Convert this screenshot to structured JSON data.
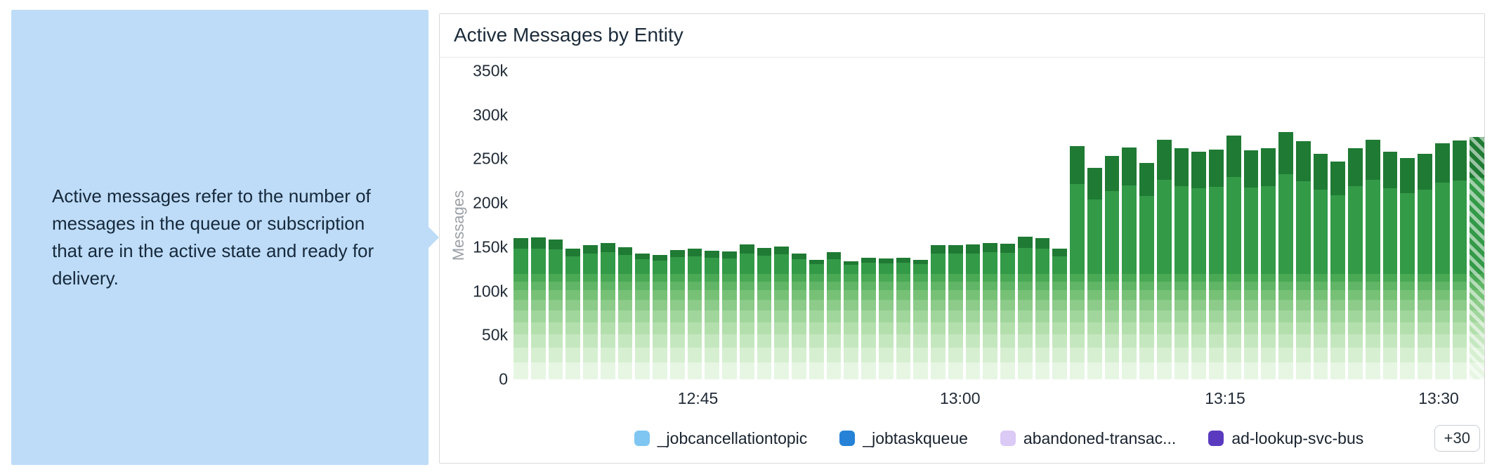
{
  "tooltip": {
    "text": "Active messages refer to the number of messages in the queue or subscription that are in the active state and ready for delivery."
  },
  "panel": {
    "title": "Active Messages by Entity"
  },
  "chart_data": {
    "type": "bar",
    "stacked": true,
    "title": "Active Messages by Entity",
    "xlabel": "",
    "ylabel": "Messages",
    "ylim_k": [
      0,
      350
    ],
    "grid": false,
    "legend_position": "bottom",
    "y_ticks": [
      {
        "label": "350k",
        "value_k": 350
      },
      {
        "label": "300k",
        "value_k": 300
      },
      {
        "label": "250k",
        "value_k": 250
      },
      {
        "label": "200k",
        "value_k": 200
      },
      {
        "label": "150k",
        "value_k": 150
      },
      {
        "label": "100k",
        "value_k": 100
      },
      {
        "label": "50k",
        "value_k": 50
      },
      {
        "label": "0",
        "value_k": 0
      }
    ],
    "x_ticks": [
      {
        "label": "12:45",
        "pos": 0.19
      },
      {
        "label": "13:00",
        "pos": 0.46
      },
      {
        "label": "13:15",
        "pos": 0.733
      },
      {
        "label": "13:30",
        "pos": 0.953
      }
    ],
    "bar_totals_k": [
      160,
      161,
      159,
      148,
      152,
      155,
      150,
      143,
      141,
      147,
      148,
      146,
      145,
      153,
      149,
      151,
      143,
      136,
      144,
      134,
      138,
      137,
      138,
      136,
      152,
      152,
      153,
      155,
      154,
      162,
      160,
      148,
      265,
      240,
      254,
      263,
      246,
      272,
      262,
      258,
      261,
      277,
      260,
      262,
      281,
      270,
      256,
      247,
      262,
      272,
      258,
      251,
      256,
      268,
      271,
      275
    ],
    "bar_base_segments": [
      {
        "color": "#e6f6e3",
        "value_k": 19
      },
      {
        "color": "#d6efd1",
        "value_k": 17
      },
      {
        "color": "#c5e7bf",
        "value_k": 15
      },
      {
        "color": "#b3dfad",
        "value_k": 14
      },
      {
        "color": "#a0d69b",
        "value_k": 13
      },
      {
        "color": "#8ccb89",
        "value_k": 12
      },
      {
        "color": "#77c177",
        "value_k": 11
      },
      {
        "color": "#61b566",
        "value_k": 10
      },
      {
        "color": "#4aa955",
        "value_k": 9
      }
    ],
    "bar_top_segments": [
      {
        "color": "#339a48",
        "fraction": 0.7
      },
      {
        "color": "#1f7a33",
        "fraction": 0.3
      }
    ],
    "last_bar_in_progress": true
  },
  "legend": {
    "items": [
      {
        "label": "_jobcancellationtopic",
        "color": "#7fc6f2"
      },
      {
        "label": "_jobtaskqueue",
        "color": "#2582d6"
      },
      {
        "label": "abandoned-transac...",
        "color": "#dbc9f6"
      },
      {
        "label": "ad-lookup-svc-bus",
        "color": "#5a3bc0"
      }
    ],
    "more_label": "+30"
  }
}
